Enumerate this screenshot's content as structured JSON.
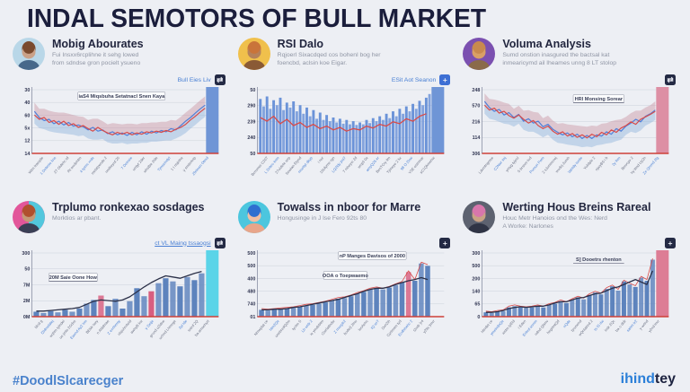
{
  "page": {
    "title": "INDAL SEMOTORS OF BULL MARKET",
    "hashtag": "#DoodlSlcarecger",
    "brand": {
      "part1": "ihind",
      "part2": "tey"
    }
  },
  "panels": [
    {
      "title": "Mobig Abourates",
      "sub1": "Fui Insxx6rcplihne it sehg lowed",
      "sub2": "from sdndse gron pocielt ysueno",
      "link": "Bull Eies Liv",
      "icon_glyph": "⇄",
      "icon_bg": "#242a44",
      "avatar": {
        "bg": "#b9d7e8",
        "hair": "#7a4a2e",
        "skin": "#caa188",
        "body": "#47688a"
      },
      "chart_data": {
        "type": "band",
        "title_annotation": "iaS4 Miqsbuha Setatnacl Snen Kaya",
        "y_ticks": [
          "30",
          "40",
          "60",
          "5x",
          "12",
          "14"
        ],
        "x_labels": [
          "Wtm traeqde",
          "1 Debmie kns",
          "27 Oldehc td",
          "Rt wodehtm",
          "4 tyimc xrde",
          "melatyende 2",
          "nmlkeyrd 20",
          "7 Deinsie",
          "umjyt 2der",
          "whsBie 2lde",
          "Tjmseindyt",
          "1 t nsjethe",
          "y smterkrip",
          "Zfelmsn Otmd"
        ],
        "red": [
          62,
          55,
          58,
          50,
          53,
          47,
          52,
          45,
          48,
          42,
          45,
          40,
          36,
          42,
          37,
          33,
          30,
          34,
          31,
          34,
          30,
          33,
          31,
          35,
          33,
          36,
          34,
          37,
          35,
          39,
          42,
          47,
          54,
          60,
          67,
          73
        ],
        "blue": [
          68,
          58,
          53,
          55,
          48,
          52,
          46,
          50,
          44,
          46,
          43,
          38,
          42,
          36,
          38,
          32,
          35,
          30,
          33,
          29,
          34,
          30,
          35,
          31,
          36,
          33,
          37,
          35,
          40,
          38,
          45,
          52,
          58,
          65,
          72,
          78
        ],
        "highlight": "#6f95d6",
        "annotations": [
          {
            "text": "iaS4 Miqsbuha Setatnacl Snen Kaya",
            "x": 120,
            "y": 14,
            "box": true
          }
        ]
      }
    },
    {
      "title": "RSI Dalo",
      "sub1": "Rqjoerl Sixacdqed cos bohenl bog her",
      "sub2": "foencbd, aclsin koe Eigar.",
      "link": "ESit Aot Seanon",
      "icon_glyph": "+",
      "icon_bg": "#3d6fd4",
      "avatar": {
        "bg": "#f0c04c",
        "hair": "#c9743a",
        "skin": "#b5815a",
        "body": "#8a5a35"
      },
      "chart_data": {
        "type": "bars",
        "y_ticks": [
          "50",
          "290",
          "239",
          "240",
          "50"
        ],
        "x_labels": [
          "Bcnvmei C207",
          "L Driteo knm",
          "27oldete wrp",
          "Sewlan Etynd",
          "mceltyl dkyp",
          "i nur",
          "15Ulyme rgn",
          "LQ2ldy jmt7",
          "7 mheyci 2d",
          "wrqt3 0e",
          "amyQ25 er",
          "BesTCry ilm",
          "Tjimeye 2 kx",
          "98 O 2lnw",
          "Y3E estmnar",
          "sC1Qkmehw"
        ],
        "values": [
          88,
          76,
          92,
          72,
          86,
          78,
          90,
          70,
          82,
          74,
          84,
          68,
          78,
          64,
          74,
          60,
          70,
          56,
          66,
          54,
          62,
          52,
          58,
          50,
          56,
          48,
          54,
          47,
          52,
          46,
          50,
          47,
          54,
          49,
          57,
          52,
          60,
          54,
          64,
          57,
          68,
          60,
          72,
          64,
          76,
          68,
          80,
          72,
          85,
          78,
          90,
          96
        ],
        "bar_color": "#6b93d8",
        "line": [
          58,
          52,
          60,
          48,
          55,
          45,
          50,
          42,
          47,
          40,
          44,
          38,
          42,
          36,
          40,
          38,
          44,
          41,
          47,
          44,
          51,
          48,
          56,
          52,
          60,
          64
        ],
        "line_color": "#d84b49",
        "highlight": "#6f95d6",
        "annotations": []
      }
    },
    {
      "title": "Voluma Analysis",
      "sub1": "Sumd onstion inasgured the bactsal kat",
      "sub2": "inmearicymd ail lheames unng 8 LT stolop",
      "link": "",
      "icon_glyph": "⇄",
      "icon_bg": "#242a44",
      "avatar": {
        "bg": "#7b50b0",
        "hair": "#c98a4e",
        "skin": "#d9a066",
        "body": "#8a6a4a"
      },
      "chart_data": {
        "type": "band",
        "y_ticks": [
          "248",
          "570",
          "216",
          "114",
          "306"
        ],
        "x_labels": [
          "Ldvmtngmse",
          "C2Nwr imj",
          "ymyg tyjeol",
          "5 brsnm tod",
          "Pomun Fwm",
          "2 sJummcrej",
          "wodej 2umh",
          "Vahldy ismle",
          "Yolidyle 2",
          "njwyBS i b",
          "2y lhm",
          "Bmvcpv 2",
          "hy tlmd Uy2n",
          "Ze Qnvnd 2lg"
        ],
        "red": [
          78,
          70,
          73,
          65,
          68,
          61,
          57,
          62,
          55,
          49,
          53,
          45,
          40,
          44,
          36,
          31,
          35,
          28,
          32,
          26,
          30,
          25,
          31,
          27,
          34,
          30,
          38,
          34,
          41,
          45,
          51,
          47,
          55,
          59,
          63,
          68
        ],
        "blue": [
          84,
          74,
          68,
          71,
          62,
          66,
          58,
          63,
          52,
          56,
          49,
          52,
          43,
          47,
          39,
          34,
          30,
          33,
          27,
          31,
          24,
          29,
          24,
          30,
          28,
          35,
          31,
          40,
          36,
          44,
          49,
          55,
          51,
          60,
          64,
          70
        ],
        "highlight": "#dd8fa4",
        "annotations": [
          {
            "text": "HRl Monsing Sorear",
            "x": 150,
            "y": 17,
            "box": true,
            "underline": true
          }
        ]
      }
    },
    {
      "title": "Trplumo ronkexao sosdages",
      "sub1": "Morktios ar pbant.",
      "sub2": "",
      "link": "ct VL Maing tssaogsi",
      "icon_glyph": "⇄",
      "icon_bg": "#242a44",
      "avatar": {
        "bg": "#e2569a",
        "bg2": "#52c7dd",
        "hair": "#b0502e",
        "skin": "#c59a77",
        "body": "#3a3f55"
      },
      "chart_data": {
        "type": "bars",
        "y_ticks": [
          "300",
          "50",
          "7M",
          "2M",
          "0M"
        ],
        "x_labels": [
          "ldod g",
          "f2ldnwlatej",
          "wqhm tylndel",
          "ue jmts 2Gdxs",
          "Eaond Ay2 lrm",
          "BEMr lwry",
          "n Alddmae",
          "Z ecrlhmsy",
          "nlsjohnAeld",
          "awhyB lrw",
          "y Deije",
          "grond u2ldne",
          "uchnd Lhmvge",
          "2yt lde",
          "sntrd 2Q",
          "ba amsehyrt"
        ],
        "values": [
          8,
          6,
          9,
          7,
          11,
          8,
          13,
          21,
          27,
          34,
          17,
          29,
          13,
          25,
          46,
          33,
          41,
          54,
          62,
          57,
          49,
          64,
          59,
          70
        ],
        "bar_color": "#5d83bd",
        "accents": {
          "9": "#d85f80",
          "16": "#d85f80"
        },
        "line": [
          9,
          9,
          10,
          11,
          12,
          13,
          15,
          20,
          25,
          27,
          26,
          25,
          27,
          32,
          40,
          48,
          55,
          61,
          66,
          64,
          62,
          66,
          70,
          73
        ],
        "line_color": "#2b3048",
        "highlight": "#5ad4e8",
        "annotations": [
          {
            "text": "20M Saie Oone How",
            "x": 66,
            "y": 34,
            "box": true,
            "underline": true
          }
        ]
      }
    },
    {
      "title": "Towalss in nboor for Marre",
      "sub1": "Hongusinge in J lse Fero 92ts 80",
      "sub2": "",
      "link": "",
      "icon_glyph": "+",
      "icon_bg": "#242a44",
      "avatar": {
        "bg": "#4cc6de",
        "hair": "#2f6fd0",
        "skin": "#f0bfa4",
        "body": "#e8a58a"
      },
      "chart_data": {
        "type": "bars",
        "y_ticks": [
          "500",
          "500",
          "400",
          "480",
          "740",
          "01"
        ],
        "x_labels": [
          "Nmwplat ce",
          "htm2Qe",
          "unebredQ2m",
          "tyolm S",
          "Lb wldr 2",
          "ie ymdebtm",
          "r2wrlatlndw",
          "Z mceplr2",
          "bodet) 2lnu",
          "lsnAehc",
          "tQ wr7",
          "Dvn2lh",
          "Cyrtmsm tyd",
          "Ecdhlsehc 2",
          "t2ndr )r4",
          "y2lts )mvr"
        ],
        "values": [
          11,
          10,
          11,
          12,
          13,
          14,
          16,
          18,
          19,
          21,
          23,
          26,
          29,
          30,
          33,
          37,
          40,
          44,
          46,
          44,
          47,
          51,
          55,
          72,
          58,
          86,
          82
        ],
        "bar_color": "#5d83bd",
        "accents": {
          "23": "#d85f80"
        },
        "top_line": true,
        "line": [
          11,
          11,
          12,
          12,
          13,
          15,
          16,
          18,
          20,
          22,
          24,
          26,
          28,
          31,
          34,
          37,
          41,
          44,
          46,
          46,
          48,
          52,
          55,
          58,
          60,
          63,
          60
        ],
        "line_color": "#2b3048",
        "highlight": null,
        "annotations": [
          {
            "text": "nP Manges Davisos of 2000",
            "x": 148,
            "y": 10,
            "box": true
          },
          {
            "text": "OOA o Toepwaemo",
            "x": 118,
            "y": 32,
            "box": true
          }
        ]
      }
    },
    {
      "title": "Werting Hous Breins Rareal",
      "sub1": "Houc Metr Hanoios ond the Wes: Nerd",
      "sub2": "A Worke: Narlones",
      "link": "",
      "icon_glyph": "+",
      "icon_bg": "#242a44",
      "avatar": {
        "bg": "#5d6270",
        "hair": "#d876ac",
        "skin": "#c9a285",
        "body": "#2f3445"
      },
      "chart_data": {
        "type": "bars",
        "y_ticks": [
          "300",
          "500",
          "200",
          "140",
          "65",
          "0"
        ],
        "x_labels": [
          "Htndet ce",
          "ymelndnQe",
          "wstm tyEld",
          "i Eden",
          "Enkrd wvnm",
          "ndnd Qbmv",
          "hegrlmtQd",
          "nQde",
          "tyomend",
          "wQnlatred 2",
          "ts lS rlw",
          "lndr 2Qc",
          "ba o dldr",
          "sahm tr2",
          "y wrlnd",
          "y2nd lnvr"
        ],
        "values": [
          7,
          6,
          8,
          9,
          15,
          17,
          15,
          14,
          15,
          17,
          15,
          19,
          21,
          25,
          22,
          27,
          31,
          28,
          35,
          39,
          36,
          45,
          49,
          42,
          57,
          52,
          48,
          63,
          58,
          92
        ],
        "bar_color": "#5d83bd",
        "top_line": true,
        "line": [
          7,
          7,
          8,
          10,
          13,
          15,
          16,
          15,
          16,
          17,
          17,
          19,
          22,
          24,
          24,
          27,
          30,
          31,
          34,
          37,
          38,
          42,
          46,
          48,
          52,
          56,
          60,
          56,
          52,
          74
        ],
        "line_color": "#2b3048",
        "highlight": "#dd7d95",
        "annotations": [
          {
            "text": "S] Dooetrs rhenton",
            "x": 150,
            "y": 14,
            "underline": true
          }
        ]
      }
    }
  ]
}
